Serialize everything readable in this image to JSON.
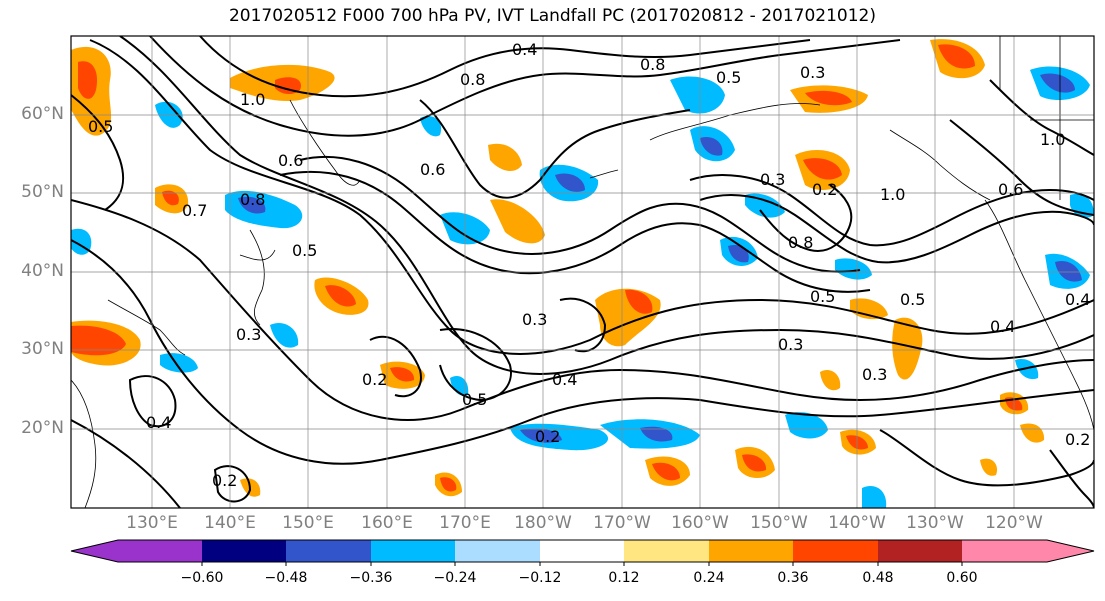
{
  "title": "2017020512 F000 700 hPa PV, IVT Landfall PC (2017020812 - 2017021012)",
  "map": {
    "lat_labels": [
      "60°N",
      "50°N",
      "40°N",
      "30°N",
      "20°N"
    ],
    "lon_labels": [
      "130°E",
      "140°E",
      "150°E",
      "160°E",
      "170°E",
      "180°W",
      "170°W",
      "160°W",
      "150°W",
      "140°W",
      "130°W",
      "120°W"
    ],
    "contour_labels": [
      "1.0",
      "0.5",
      "0.6",
      "0.7",
      "0.8",
      "0.5",
      "0.3",
      "0.2",
      "0.4",
      "0.2",
      "0.5",
      "0.3",
      "0.4",
      "0.2",
      "0.8",
      "0.5",
      "0.3",
      "0.8",
      "0.5",
      "1.0",
      "0.6",
      "0.3",
      "0.4",
      "0.3",
      "0.5",
      "0.2",
      "0.4",
      "1.0",
      "0.6",
      "0.4",
      "0.8",
      "0.3",
      "0.2"
    ]
  },
  "colorbar": {
    "tick_labels": [
      "−0.60",
      "−0.48",
      "−0.36",
      "−0.24",
      "−0.12",
      "0.12",
      "0.24",
      "0.36",
      "0.48",
      "0.60"
    ],
    "colors": [
      "#9933cc",
      "#000080",
      "#3355cc",
      "#00bbff",
      "#aaddff",
      "#ffffff",
      "#ffe680",
      "#ffa500",
      "#ff4500",
      "#b22222",
      "#ff88aa"
    ]
  }
}
